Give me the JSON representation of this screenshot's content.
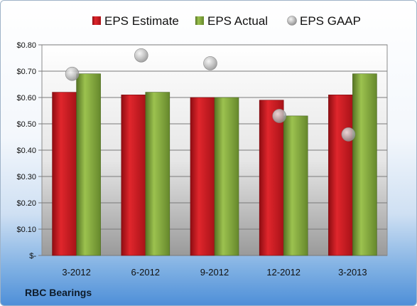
{
  "footer_label": "RBC Bearings",
  "colors": {
    "estimate": "#c8161d",
    "actual": "#7fa33a",
    "gaap": "#b9bdc2"
  },
  "chart_data": {
    "type": "bar",
    "categories": [
      "3-2012",
      "6-2012",
      "9-2012",
      "12-2012",
      "3-2013"
    ],
    "series": [
      {
        "name": "EPS Estimate",
        "values": [
          0.62,
          0.61,
          0.6,
          0.59,
          0.61
        ]
      },
      {
        "name": "EPS Actual",
        "values": [
          0.69,
          0.62,
          0.6,
          0.53,
          0.69
        ]
      },
      {
        "name": "EPS GAAP",
        "values": [
          0.69,
          0.76,
          0.73,
          0.53,
          0.46
        ],
        "marker": "circle"
      }
    ],
    "yticks": [
      "$-",
      "$0.10",
      "$0.20",
      "$0.30",
      "$0.40",
      "$0.50",
      "$0.60",
      "$0.70",
      "$0.80"
    ],
    "ylim": [
      0,
      0.8
    ],
    "grid": true,
    "legend": "top"
  }
}
